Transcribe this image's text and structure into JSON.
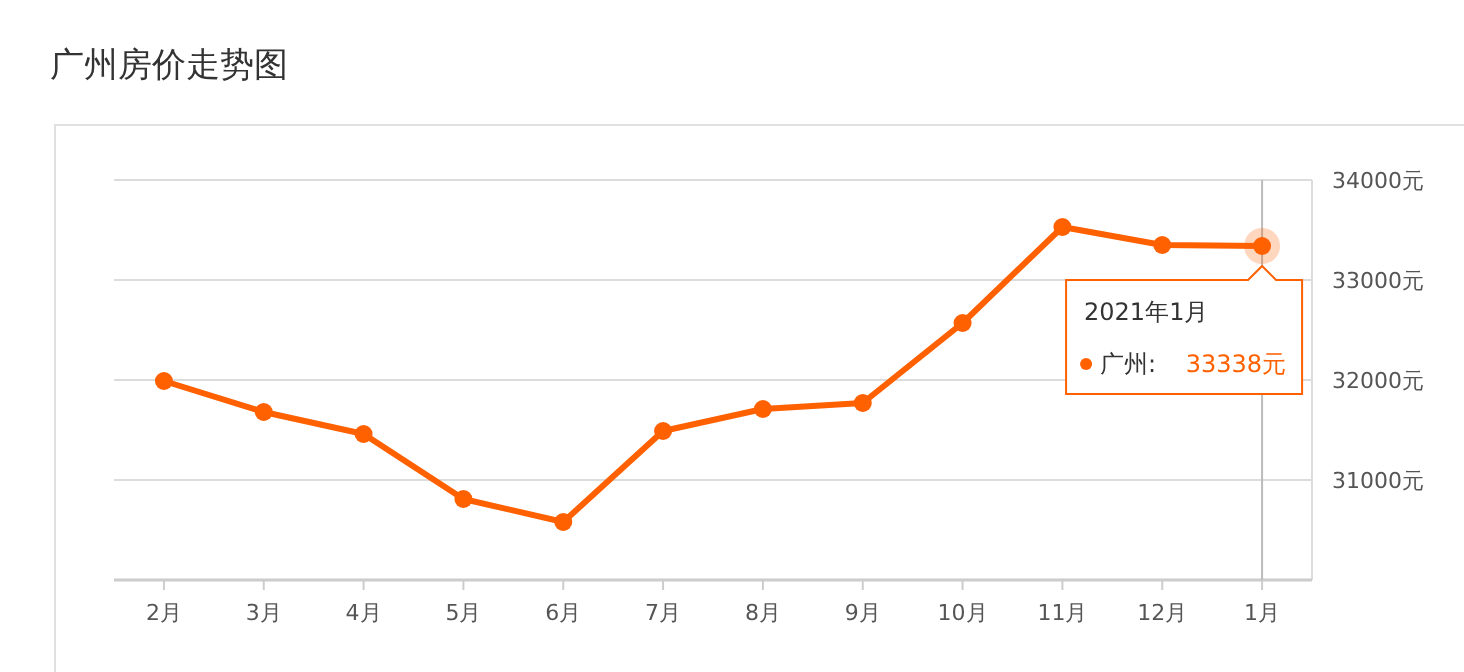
{
  "chart_data": {
    "type": "line",
    "title": "广州房价走势图",
    "categories": [
      "2月",
      "3月",
      "4月",
      "5月",
      "6月",
      "7月",
      "8月",
      "9月",
      "10月",
      "11月",
      "12月",
      "1月"
    ],
    "series": [
      {
        "name": "广州:",
        "color": "#ff6000",
        "values": [
          31990,
          31680,
          31460,
          30810,
          30580,
          31490,
          31710,
          31770,
          32570,
          33530,
          33350,
          33340
        ]
      }
    ],
    "annotations": [
      "2021年1月",
      "33338元"
    ],
    "ref_lines": [
      {
        "axis": "x",
        "value": "1月",
        "color": "#bbbbbb"
      }
    ],
    "ylim": [
      30000,
      34000
    ],
    "yticks": [
      {
        "value": 31000,
        "label": "31000元"
      },
      {
        "value": 32000,
        "label": "32000元"
      },
      {
        "value": 33000,
        "label": "33000元"
      },
      {
        "value": 34000,
        "label": "34000元"
      }
    ],
    "grid": "y",
    "marker": "circle",
    "line_style": "solid",
    "legend": "right"
  }
}
